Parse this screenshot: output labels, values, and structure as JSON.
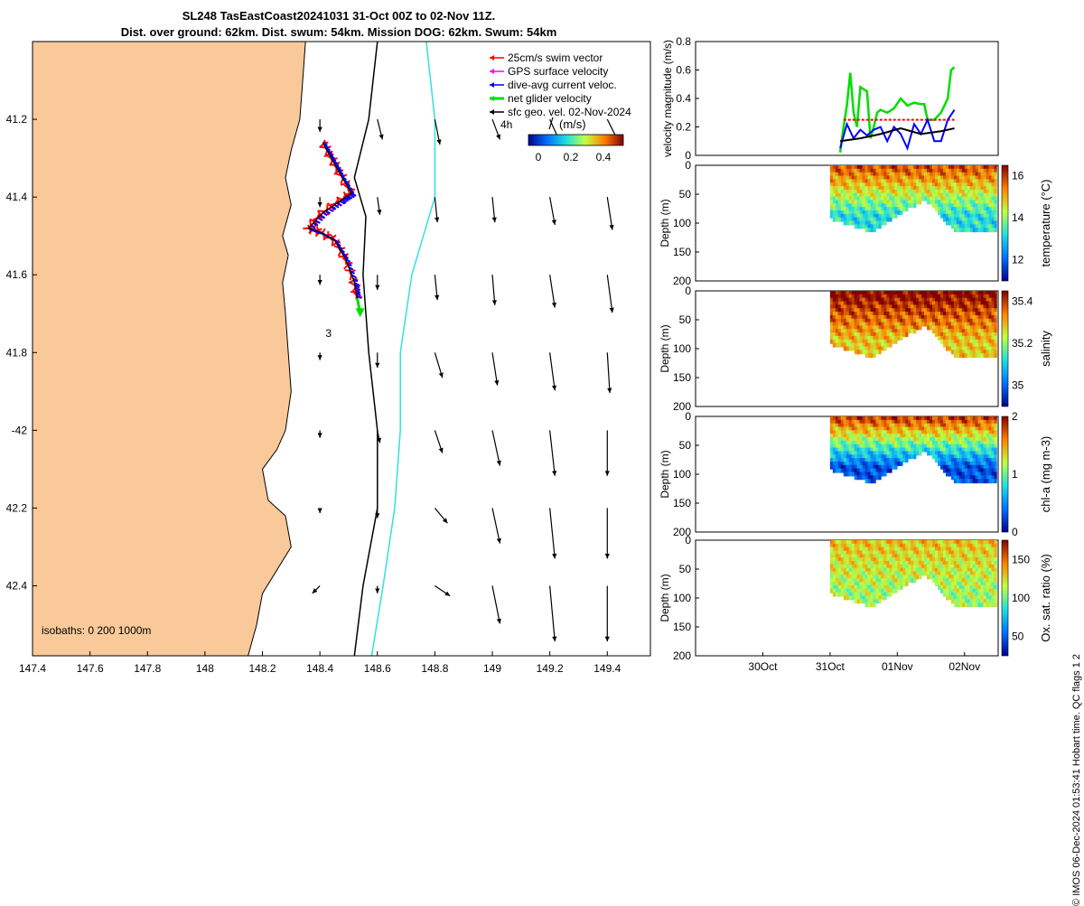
{
  "title_line1": "SL248 TasEastCoast20241031 31-Oct 00Z to 02-Nov 11Z.",
  "title_line2": "Dist. over ground: 62km. Dist. swum: 54km. Mission DOG: 62km. Swum: 54km",
  "footer": "© IMOS 06-Dec-2024 01:53:41 Hobart time. QC flags 1  2",
  "colors": {
    "land": "#f9c99a",
    "isobath_200": "#000000",
    "isobath_1000": "#33e0e0",
    "swim": "#ff0000",
    "gps": "#ff00ff",
    "current": "#0000ff",
    "net": "#00dd00",
    "geo": "#000000"
  },
  "chart_data": [
    {
      "type": "map",
      "name": "glider track map",
      "xlim": [
        147.4,
        149.55
      ],
      "ylim": [
        -42.58,
        -41.0
      ],
      "x_ticks": [
        147.4,
        147.6,
        147.8,
        148,
        148.2,
        148.4,
        148.6,
        148.8,
        149,
        149.2,
        149.4
      ],
      "x_tick_labels": [
        "147.4",
        "147.6",
        "147.8",
        "148",
        "148.2",
        "148.4",
        "148.6",
        "148.8",
        "149",
        "149.2",
        "149.4"
      ],
      "y_ticks": [
        -41.2,
        -41.4,
        -41.6,
        -41.8,
        -42,
        -42.2,
        -42.4
      ],
      "y_tick_labels": [
        "41.2",
        "41.4",
        "41.6",
        "41.8",
        "-42",
        "42.2",
        "42.4"
      ],
      "legend": [
        {
          "label": "25cm/s swim vector",
          "color": "#ff0000"
        },
        {
          "label": "GPS surface velocity",
          "color": "#ff00ff"
        },
        {
          "label": "dive-avg current veloc.",
          "color": "#0000ff"
        },
        {
          "label": "net glider velocity",
          "color": "#00dd00"
        },
        {
          "label": "sfc geo. vel. 02-Nov-2024",
          "color": "#000000"
        }
      ],
      "scale_label": "4h",
      "colorbar_title": "(m/s)",
      "colorbar_ticks": [
        "0",
        "0.2",
        "0.4"
      ],
      "track_label": "3",
      "isobath_label": "isobaths: 0   200  1000m",
      "coastline": [
        [
          147.4,
          -41.0
        ],
        [
          148.35,
          -41.0
        ],
        [
          148.34,
          -41.1
        ],
        [
          148.33,
          -41.2
        ],
        [
          148.3,
          -41.28
        ],
        [
          148.28,
          -41.35
        ],
        [
          148.3,
          -41.42
        ],
        [
          148.27,
          -41.5
        ],
        [
          148.29,
          -41.55
        ],
        [
          148.27,
          -41.62
        ],
        [
          148.28,
          -41.7
        ],
        [
          148.29,
          -41.8
        ],
        [
          148.3,
          -41.9
        ],
        [
          148.28,
          -42.0
        ],
        [
          148.25,
          -42.05
        ],
        [
          148.2,
          -42.1
        ],
        [
          148.22,
          -42.18
        ],
        [
          148.28,
          -42.22
        ],
        [
          148.3,
          -42.3
        ],
        [
          148.25,
          -42.36
        ],
        [
          148.2,
          -42.42
        ],
        [
          148.18,
          -42.5
        ],
        [
          148.15,
          -42.58
        ],
        [
          147.4,
          -42.58
        ]
      ],
      "isobath_200": [
        [
          148.6,
          -41.0
        ],
        [
          148.57,
          -41.2
        ],
        [
          148.52,
          -41.35
        ],
        [
          148.56,
          -41.45
        ],
        [
          148.55,
          -41.6
        ],
        [
          148.57,
          -41.8
        ],
        [
          148.6,
          -42.0
        ],
        [
          148.6,
          -42.2
        ],
        [
          148.55,
          -42.4
        ],
        [
          148.52,
          -42.58
        ]
      ],
      "isobath_1000": [
        [
          148.77,
          -41.0
        ],
        [
          148.8,
          -41.2
        ],
        [
          148.8,
          -41.4
        ],
        [
          148.72,
          -41.6
        ],
        [
          148.68,
          -41.8
        ],
        [
          148.68,
          -42.0
        ],
        [
          148.66,
          -42.2
        ],
        [
          148.62,
          -42.4
        ],
        [
          148.58,
          -42.58
        ]
      ],
      "glider_track": [
        [
          148.41,
          -41.26
        ],
        [
          148.44,
          -41.3
        ],
        [
          148.47,
          -41.34
        ],
        [
          148.51,
          -41.39
        ],
        [
          148.47,
          -41.41
        ],
        [
          148.41,
          -41.44
        ],
        [
          148.36,
          -41.48
        ],
        [
          148.4,
          -41.49
        ],
        [
          148.45,
          -41.51
        ],
        [
          148.49,
          -41.56
        ],
        [
          148.52,
          -41.62
        ],
        [
          148.53,
          -41.66
        ]
      ],
      "net_velocity_end": [
        148.54,
        -41.7
      ],
      "vector_lons": [
        148.4,
        148.6,
        148.8,
        149.0,
        149.2,
        149.4
      ],
      "vector_lats": [
        -41.2,
        -41.4,
        -41.6,
        -41.8,
        -42.0,
        -42.2,
        -42.4
      ],
      "vectors_uv": [
        [
          [
            0,
            -0.05
          ],
          [
            0.02,
            -0.08
          ],
          [
            0.02,
            -0.1
          ],
          [
            0.03,
            -0.08
          ],
          [
            0.04,
            -0.09
          ],
          [
            0.05,
            -0.1
          ]
        ],
        [
          [
            0,
            -0.04
          ],
          [
            0.01,
            -0.07
          ],
          [
            0.01,
            -0.1
          ],
          [
            0.01,
            -0.1
          ],
          [
            0.02,
            -0.11
          ],
          [
            0.02,
            -0.13
          ]
        ],
        [
          [
            0,
            -0.04
          ],
          [
            0,
            -0.06
          ],
          [
            0.01,
            -0.1
          ],
          [
            0.01,
            -0.12
          ],
          [
            0.02,
            -0.13
          ],
          [
            0.02,
            -0.15
          ]
        ],
        [
          [
            0,
            -0.03
          ],
          [
            0,
            -0.06
          ],
          [
            0.03,
            -0.1
          ],
          [
            0.02,
            -0.13
          ],
          [
            0.02,
            -0.15
          ],
          [
            0.01,
            -0.16
          ]
        ],
        [
          [
            0,
            -0.03
          ],
          [
            0.01,
            -0.05
          ],
          [
            0.03,
            -0.09
          ],
          [
            0.03,
            -0.14
          ],
          [
            0.02,
            -0.18
          ],
          [
            0,
            -0.18
          ]
        ],
        [
          [
            0,
            -0.02
          ],
          [
            0,
            -0.04
          ],
          [
            0.05,
            -0.06
          ],
          [
            0.03,
            -0.14
          ],
          [
            0.02,
            -0.2
          ],
          [
            0,
            -0.2
          ]
        ],
        [
          [
            -0.03,
            -0.03
          ],
          [
            0,
            -0.03
          ],
          [
            0.06,
            -0.04
          ],
          [
            0.03,
            -0.15
          ],
          [
            0.02,
            -0.22
          ],
          [
            0,
            -0.22
          ]
        ]
      ]
    },
    {
      "type": "line",
      "name": "velocity magnitude",
      "ylabel": "velocity magnitude (m/s)",
      "ylim": [
        0,
        0.8
      ],
      "y_ticks": [
        0,
        0.2,
        0.4,
        0.6,
        0.8
      ],
      "y_tick_labels": [
        "0",
        "0.2",
        "0.4",
        "0.6",
        "0.8"
      ],
      "xlim": [
        0,
        3.7
      ],
      "series": [
        {
          "name": "net glider velocity",
          "color": "#00dd00",
          "x": [
            2.0,
            2.05,
            2.1,
            2.15,
            2.2,
            2.25,
            2.3,
            2.4,
            2.45,
            2.5,
            2.55,
            2.6,
            2.7,
            2.8,
            2.9,
            3.0,
            3.1,
            3.2,
            3.25,
            3.3,
            3.4,
            3.5,
            3.6,
            3.65,
            3.7
          ],
          "y": [
            0.02,
            0.2,
            0.35,
            0.58,
            0.3,
            0.2,
            0.48,
            0.45,
            0.12,
            0.2,
            0.3,
            0.32,
            0.3,
            0.33,
            0.4,
            0.35,
            0.37,
            0.36,
            0.36,
            0.25,
            0.25,
            0.3,
            0.4,
            0.6,
            0.62
          ]
        },
        {
          "name": "swim speed",
          "color": "#ff0000",
          "x": [
            2.05,
            3.7
          ],
          "y": [
            0.25,
            0.25
          ]
        },
        {
          "name": "dive-avg current",
          "color": "#0000ff",
          "x": [
            2.0,
            2.1,
            2.2,
            2.3,
            2.4,
            2.5,
            2.6,
            2.7,
            2.8,
            2.9,
            3.0,
            3.1,
            3.2,
            3.3,
            3.4,
            3.5,
            3.6,
            3.7
          ],
          "y": [
            0.05,
            0.22,
            0.12,
            0.18,
            0.14,
            0.18,
            0.2,
            0.1,
            0.2,
            0.15,
            0.05,
            0.22,
            0.15,
            0.25,
            0.1,
            0.1,
            0.25,
            0.32
          ]
        },
        {
          "name": "sfc geo. vel.",
          "color": "#000000",
          "x": [
            2.0,
            2.3,
            2.6,
            2.9,
            3.2,
            3.5,
            3.7
          ],
          "y": [
            0.1,
            0.12,
            0.15,
            0.19,
            0.15,
            0.17,
            0.19
          ]
        }
      ]
    },
    {
      "type": "heatmap",
      "name": "temperature section",
      "ylabel": "Depth (m)",
      "colorbar_label": "temperature (°C)",
      "ylim": [
        200,
        0
      ],
      "y_tick_labels": [
        "0",
        "50",
        "100",
        "150",
        "200"
      ],
      "clim": [
        11,
        16.5
      ],
      "colorbar_ticks": [
        12,
        14,
        16
      ],
      "surface_value": 15.8,
      "deep_value": 13.2
    },
    {
      "type": "heatmap",
      "name": "salinity section",
      "ylabel": "Depth (m)",
      "colorbar_label": "salinity",
      "ylim": [
        200,
        0
      ],
      "y_tick_labels": [
        "0",
        "50",
        "100",
        "150",
        "200"
      ],
      "clim": [
        34.9,
        35.45
      ],
      "colorbar_ticks": [
        35,
        35.2,
        35.4
      ],
      "surface_value": 35.45,
      "deep_value": 35.28
    },
    {
      "type": "heatmap",
      "name": "chl-a section",
      "ylabel": "Depth (m)",
      "colorbar_label": "chl-a (mg m-3)",
      "ylim": [
        200,
        0
      ],
      "y_tick_labels": [
        "0",
        "50",
        "100",
        "150",
        "200"
      ],
      "clim": [
        0,
        2
      ],
      "colorbar_ticks": [
        0,
        1,
        2
      ],
      "surface_value": 1.8,
      "deep_value": 0.3
    },
    {
      "type": "heatmap",
      "name": "oxygen saturation section",
      "ylabel": "Depth (m)",
      "colorbar_label": "Ox. sat. ratio (%)",
      "ylim": [
        200,
        0
      ],
      "y_tick_labels": [
        "0",
        "50",
        "100",
        "150",
        "200"
      ],
      "clim": [
        25,
        175
      ],
      "colorbar_ticks": [
        50,
        100,
        150
      ],
      "surface_value": 130,
      "deep_value": 110,
      "x_tick_labels": [
        "30Oct",
        "31Oct",
        "01Nov",
        "02Nov"
      ],
      "x_ticks": [
        1,
        2,
        3,
        4
      ]
    }
  ]
}
